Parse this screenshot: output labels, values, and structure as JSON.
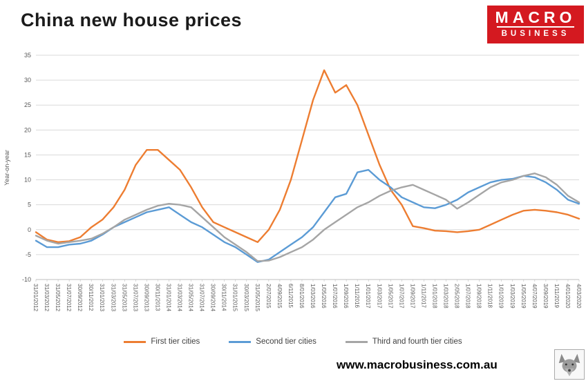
{
  "logo": {
    "line1": "MACRO",
    "line2": "BUSINESS"
  },
  "footer": {
    "website": "www.macrobusiness.com.au"
  },
  "colors": {
    "first_tier": "#ED7D31",
    "second_tier": "#5B9BD5",
    "third_tier": "#A5A5A5",
    "logo_bg": "#D41920",
    "grid": "#D9D9D9",
    "axis_line": "#BFBFBF",
    "axis_text": "#595959"
  },
  "chart_data": {
    "type": "line",
    "title": "China new house prices",
    "xlabel": "",
    "ylabel": "Year-on-year",
    "ylim": [
      -10,
      35
    ],
    "ytick_step": 5,
    "grid": true,
    "legend_position": "bottom",
    "categories": [
      "31/01/2012",
      "31/03/2012",
      "31/05/2012",
      "31/07/2012",
      "30/09/2012",
      "30/11/2012",
      "31/01/2013",
      "31/03/2013",
      "31/05/2013",
      "31/07/2013",
      "30/09/2013",
      "30/11/2013",
      "31/01/2014",
      "31/03/2014",
      "31/05/2014",
      "31/07/2014",
      "30/09/2014",
      "30/11/2014",
      "31/01/2015",
      "30/03/2015",
      "31/05/2015",
      "2/07/2015",
      "4/09/2015",
      "6/11/2015",
      "8/01/2016",
      "1/03/2016",
      "1/05/2016",
      "1/07/2016",
      "1/09/2016",
      "1/11/2016",
      "1/01/2017",
      "1/03/2017",
      "1/05/2017",
      "1/07/2017",
      "1/09/2017",
      "1/11/2017",
      "1/01/2018",
      "1/03/2018",
      "2/05/2018",
      "1/07/2018",
      "1/09/2018",
      "1/11/2018",
      "1/01/2019",
      "1/03/2019",
      "1/05/2019",
      "4/07/2019",
      "3/09/2019",
      "1/11/2019",
      "4/01/2020",
      "4/03/2020"
    ],
    "series": [
      {
        "name": "First tier cities",
        "color": "#ED7D31",
        "values": [
          -0.5,
          -2,
          -2.5,
          -2.3,
          -1.5,
          0.5,
          2,
          4.5,
          8,
          13,
          16,
          16,
          14,
          12,
          8.5,
          4.5,
          1.5,
          0.5,
          -0.5,
          -1.5,
          -2.5,
          0,
          4,
          10,
          18,
          26,
          32,
          27.5,
          29,
          25,
          19,
          13,
          8,
          5,
          0.7,
          0.3,
          -0.2,
          -0.3,
          -0.5,
          -0.3,
          0,
          1,
          2,
          3,
          3.8,
          4,
          3.8,
          3.5,
          3,
          2.2
        ]
      },
      {
        "name": "Second tier cities",
        "color": "#5B9BD5",
        "values": [
          -2.2,
          -3.5,
          -3.5,
          -3,
          -2.8,
          -2.2,
          -1,
          0.5,
          1.5,
          2.5,
          3.5,
          4,
          4.5,
          3,
          1.5,
          0.5,
          -1,
          -2.5,
          -3.5,
          -5,
          -6.5,
          -6,
          -4.5,
          -3,
          -1.5,
          0.5,
          3.5,
          6.5,
          7.2,
          11.5,
          12,
          10,
          8.5,
          6.5,
          5.5,
          4.5,
          4.3,
          5,
          6,
          7.5,
          8.5,
          9.5,
          10,
          10.2,
          10.8,
          10.5,
          9.5,
          8,
          6,
          5.2
        ]
      },
      {
        "name": "Third and fourth tier cities",
        "color": "#A5A5A5",
        "values": [
          -1.2,
          -2.2,
          -2.8,
          -2.5,
          -2.2,
          -1.8,
          -0.8,
          0.5,
          2,
          3,
          4,
          4.8,
          5.2,
          5,
          4.5,
          2.5,
          0.5,
          -1.5,
          -3,
          -4.5,
          -6.3,
          -6.2,
          -5.5,
          -4.5,
          -3.5,
          -2,
          0,
          1.5,
          3,
          4.5,
          5.5,
          6.8,
          7.8,
          8.5,
          9,
          8,
          7,
          6,
          4.2,
          5.5,
          7,
          8.5,
          9.5,
          10,
          10.8,
          11.3,
          10.5,
          9,
          6.8,
          5.5
        ]
      }
    ]
  }
}
